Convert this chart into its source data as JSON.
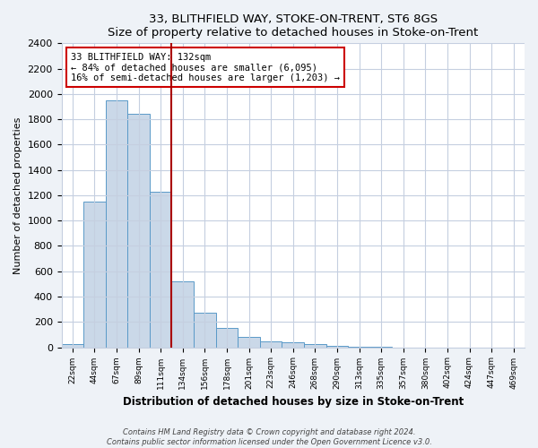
{
  "title": "33, BLITHFIELD WAY, STOKE-ON-TRENT, ST6 8GS",
  "subtitle": "Size of property relative to detached houses in Stoke-on-Trent",
  "xlabel": "Distribution of detached houses by size in Stoke-on-Trent",
  "ylabel": "Number of detached properties",
  "bin_labels": [
    "22sqm",
    "44sqm",
    "67sqm",
    "89sqm",
    "111sqm",
    "134sqm",
    "156sqm",
    "178sqm",
    "201sqm",
    "223sqm",
    "246sqm",
    "268sqm",
    "290sqm",
    "313sqm",
    "335sqm",
    "357sqm",
    "380sqm",
    "402sqm",
    "424sqm",
    "447sqm",
    "469sqm"
  ],
  "bar_heights": [
    25,
    1150,
    1950,
    1840,
    1230,
    520,
    270,
    150,
    80,
    50,
    40,
    25,
    10,
    2,
    1,
    0,
    0,
    0,
    0,
    0,
    0
  ],
  "bar_color": "#cad8e8",
  "bar_edge_color": "#5a9ac8",
  "vline_x_index": 5,
  "vline_color": "#aa0000",
  "annotation_title": "33 BLITHFIELD WAY: 132sqm",
  "annotation_line1": "← 84% of detached houses are smaller (6,095)",
  "annotation_line2": "16% of semi-detached houses are larger (1,203) →",
  "annotation_box_color": "#ffffff",
  "annotation_box_edge": "#cc0000",
  "ylim": [
    0,
    2400
  ],
  "yticks": [
    0,
    200,
    400,
    600,
    800,
    1000,
    1200,
    1400,
    1600,
    1800,
    2000,
    2200,
    2400
  ],
  "footer1": "Contains HM Land Registry data © Crown copyright and database right 2024.",
  "footer2": "Contains public sector information licensed under the Open Government Licence v3.0.",
  "bg_color": "#eef2f7",
  "plot_bg_color": "#ffffff",
  "grid_color": "#c5cfe0"
}
